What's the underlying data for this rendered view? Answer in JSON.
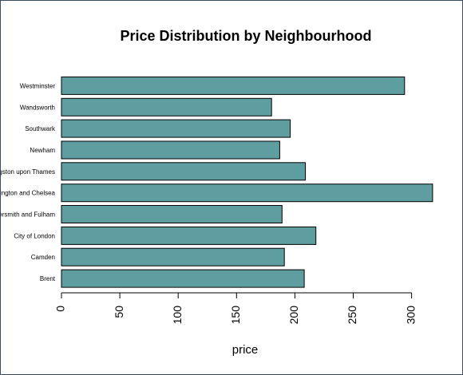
{
  "chart_data": {
    "type": "bar",
    "orientation": "horizontal",
    "title": "Price Distribution by Neighbourhood",
    "xlabel": "price",
    "ylabel": "",
    "categories": [
      "Brent",
      "Camden",
      "City of London",
      "Hammersmith and Fulham",
      "Kensington and Chelsea",
      "Kingston upon Thames",
      "Newham",
      "Southwark",
      "Wandsworth",
      "Westminster"
    ],
    "values": [
      208,
      191,
      218,
      189,
      318,
      209,
      187,
      196,
      180,
      294
    ],
    "xlim": [
      0,
      320
    ],
    "xticks": [
      0,
      50,
      100,
      150,
      200,
      250,
      300
    ],
    "bar_color": "#5f9ea0",
    "bar_border_color": "#000000",
    "grid": false
  }
}
